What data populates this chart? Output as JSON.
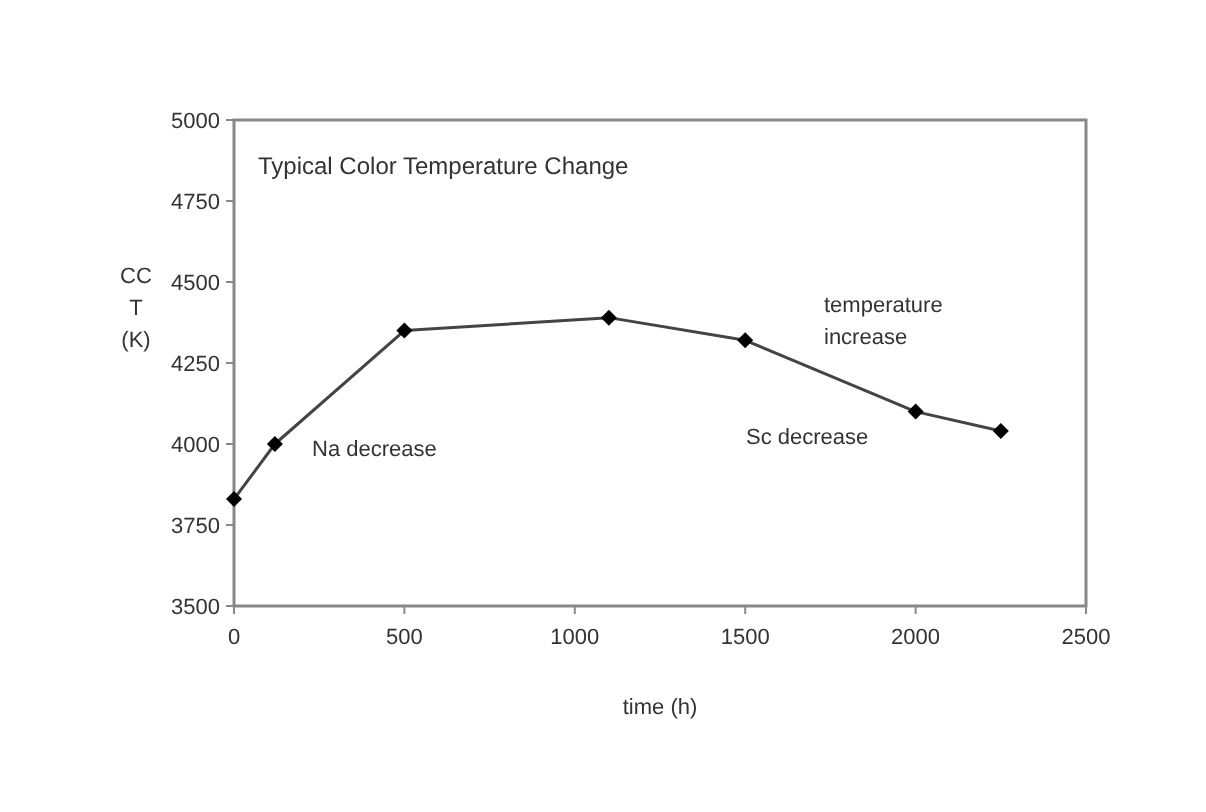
{
  "chart_data": {
    "type": "line",
    "title": "Typical Color Temperature Change",
    "xlabel": "time (h)",
    "ylabel": "CC T (K)",
    "x": [
      0,
      120,
      500,
      1100,
      1500,
      2000,
      2250
    ],
    "series": [
      {
        "color": "#444444",
        "values": [
          3830,
          4000,
          4350,
          4390,
          4320,
          4100,
          4040
        ]
      }
    ],
    "xlim": [
      0,
      2500
    ],
    "xticks": [
      0,
      500,
      1000,
      1500,
      2000,
      2500
    ],
    "ylim": [
      3500,
      5000
    ],
    "yticks": [
      3500,
      3750,
      4000,
      4250,
      4500,
      4750,
      5000
    ],
    "marker": "diamond",
    "line_style": "solid",
    "annotations": [
      "Na decrease",
      "temperature increase",
      "Sc decrease"
    ]
  }
}
